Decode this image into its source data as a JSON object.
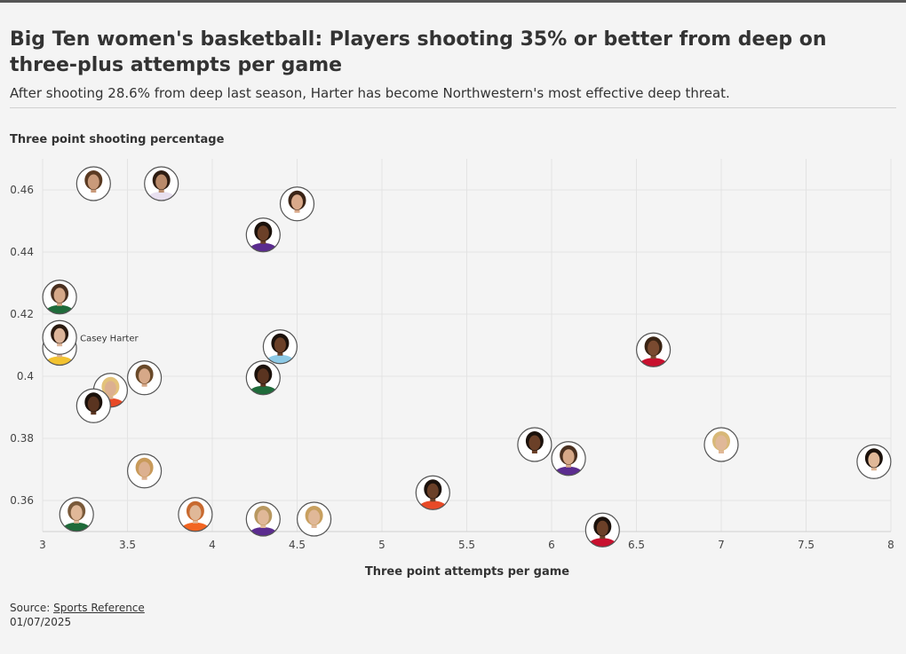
{
  "header": {
    "title": "Big Ten women's basketball: Players shooting 35% or better from deep on three-plus attempts per game",
    "subtitle": "After shooting 28.6% from deep last season, Harter has become Northwestern's most effective deep threat."
  },
  "footer": {
    "source_prefix": "Source: ",
    "source_link": "Sports Reference",
    "date": "01/07/2025"
  },
  "chart_data": {
    "type": "scatter",
    "xlabel": "Three point attempts per game",
    "ylabel": "Three point shooting percentage",
    "xlim": [
      3,
      8
    ],
    "ylim": [
      0.35,
      0.47
    ],
    "xticks": [
      "3",
      "3.5",
      "4",
      "4.5",
      "5",
      "5.5",
      "6",
      "6.5",
      "7",
      "7.5",
      "8"
    ],
    "yticks": [
      "0.36",
      "0.38",
      "0.4",
      "0.42",
      "0.44",
      "0.46"
    ],
    "grid": true,
    "marker": "player-headshot",
    "points": [
      {
        "x": 3.3,
        "y": 0.462,
        "jersey": "#ffffff",
        "skin": "#c99a7a",
        "hair": "#5a3a22"
      },
      {
        "x": 3.7,
        "y": 0.462,
        "jersey": "#e8e0f0",
        "skin": "#b98a6a",
        "hair": "#2e1d12"
      },
      {
        "x": 4.5,
        "y": 0.4555,
        "jersey": "#ffffff",
        "skin": "#d9a98a",
        "hair": "#3b2416"
      },
      {
        "x": 4.3,
        "y": 0.4455,
        "jersey": "#5b2c8f",
        "skin": "#6b4028",
        "hair": "#1c120c"
      },
      {
        "x": 3.1,
        "y": 0.4255,
        "jersey": "#1f6b3a",
        "skin": "#d6a888",
        "hair": "#4a3020"
      },
      {
        "x": 3.1,
        "y": 0.409,
        "jersey": "#f2c230",
        "skin": "#d9b092",
        "hair": "#5a3a22"
      },
      {
        "x": 3.1,
        "y": 0.4125,
        "jersey": "#ffffff",
        "skin": "#ddb59a",
        "hair": "#2a1a10",
        "label": "Casey Harter"
      },
      {
        "x": 4.4,
        "y": 0.4095,
        "jersey": "#8ecae6",
        "skin": "#6b4028",
        "hair": "#1c120c"
      },
      {
        "x": 6.6,
        "y": 0.4085,
        "jersey": "#c8102e",
        "skin": "#7a4a30",
        "hair": "#3a2414"
      },
      {
        "x": 3.4,
        "y": 0.3955,
        "jersey": "#e84a27",
        "skin": "#dcb090",
        "hair": "#e3c27a"
      },
      {
        "x": 3.6,
        "y": 0.3995,
        "jersey": "#ffffff",
        "skin": "#d6a888",
        "hair": "#6a4a2a"
      },
      {
        "x": 4.3,
        "y": 0.3995,
        "jersey": "#1f6b3a",
        "skin": "#5a3420",
        "hair": "#1c120c"
      },
      {
        "x": 3.3,
        "y": 0.3905,
        "jersey": "#ffffff",
        "skin": "#5a3420",
        "hair": "#1c120c"
      },
      {
        "x": 5.9,
        "y": 0.378,
        "jersey": "#ffffff",
        "skin": "#6b4028",
        "hair": "#1c120c"
      },
      {
        "x": 6.1,
        "y": 0.3735,
        "jersey": "#5b2c8f",
        "skin": "#d6a888",
        "hair": "#4a3020"
      },
      {
        "x": 7.0,
        "y": 0.378,
        "jersey": "#ffffff",
        "skin": "#e0b898",
        "hair": "#d8b878"
      },
      {
        "x": 7.9,
        "y": 0.3725,
        "jersey": "#ffffff",
        "skin": "#e0b898",
        "hair": "#1c120c"
      },
      {
        "x": 3.6,
        "y": 0.3695,
        "jersey": "#ffffff",
        "skin": "#dcb090",
        "hair": "#c89a5a"
      },
      {
        "x": 5.3,
        "y": 0.3625,
        "jersey": "#e84a27",
        "skin": "#6b4028",
        "hair": "#1c120c"
      },
      {
        "x": 3.2,
        "y": 0.3555,
        "jersey": "#1f6b3a",
        "skin": "#e0b898",
        "hair": "#7a5a3a"
      },
      {
        "x": 3.9,
        "y": 0.3555,
        "jersey": "#f26522",
        "skin": "#e0b898",
        "hair": "#c86a30"
      },
      {
        "x": 4.3,
        "y": 0.354,
        "jersey": "#5b2c8f",
        "skin": "#e0b898",
        "hair": "#b89860"
      },
      {
        "x": 4.6,
        "y": 0.354,
        "jersey": "#ffffff",
        "skin": "#e0b898",
        "hair": "#c8a060"
      },
      {
        "x": 6.3,
        "y": 0.3505,
        "jersey": "#c8102e",
        "skin": "#6b4028",
        "hair": "#1c120c"
      }
    ]
  }
}
